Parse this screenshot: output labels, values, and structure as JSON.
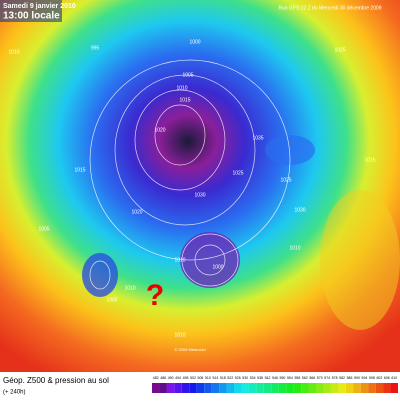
{
  "header": {
    "date": "Samedi 9 janvier 2010",
    "time": "13:00 locale",
    "run": "Run GFS 12 Z du Mercredi 30 décembre 2009"
  },
  "map": {
    "mark": "?",
    "copyright": "© 2009 Meteociel",
    "isobars": [
      "1010",
      "995",
      "1000",
      "1005",
      "1010",
      "1015",
      "1020",
      "1035",
      "1025",
      "1030",
      "1015",
      "1020",
      "1005",
      "1010",
      "1010",
      "1005",
      "1000",
      "1025",
      "1030",
      "1015",
      "1010",
      "1010",
      "1025"
    ]
  },
  "footer": {
    "title": "Géop. Z500 & pression au sol",
    "lead": "(+ 240h)"
  },
  "scale": {
    "labels": [
      "482",
      "486",
      "490",
      "494",
      "498",
      "502",
      "506",
      "510",
      "514",
      "518",
      "522",
      "526",
      "530",
      "534",
      "538",
      "542",
      "546",
      "550",
      "554",
      "558",
      "562",
      "566",
      "570",
      "574",
      "578",
      "582",
      "586",
      "590",
      "594",
      "598",
      "602",
      "606",
      "610"
    ]
  }
}
